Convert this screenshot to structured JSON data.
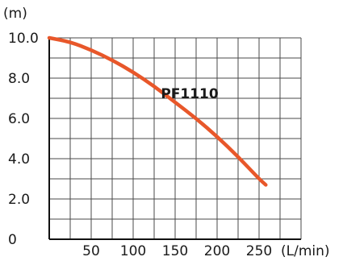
{
  "chart_data": {
    "type": "line",
    "xlabel": "(L/min)",
    "ylabel": "(m)",
    "x_ticks": [
      "50",
      "100",
      "150",
      "200",
      "250"
    ],
    "y_ticks": [
      "0",
      "2.0",
      "4.0",
      "6.0",
      "8.0",
      "10.0"
    ],
    "x_tick_values": [
      50,
      100,
      150,
      200,
      250
    ],
    "y_tick_values": [
      0,
      2,
      4,
      6,
      8,
      10
    ],
    "xlim": [
      0,
      300
    ],
    "ylim": [
      0,
      10
    ],
    "grid": true,
    "series": [
      {
        "name": "PF1110",
        "color": "#e8572a",
        "x": [
          0,
          25,
          50,
          75,
          100,
          125,
          150,
          175,
          200,
          225,
          250,
          258
        ],
        "y": [
          10.0,
          9.8,
          9.4,
          8.9,
          8.3,
          7.6,
          6.8,
          6.0,
          5.1,
          4.1,
          3.0,
          2.7
        ]
      }
    ]
  }
}
